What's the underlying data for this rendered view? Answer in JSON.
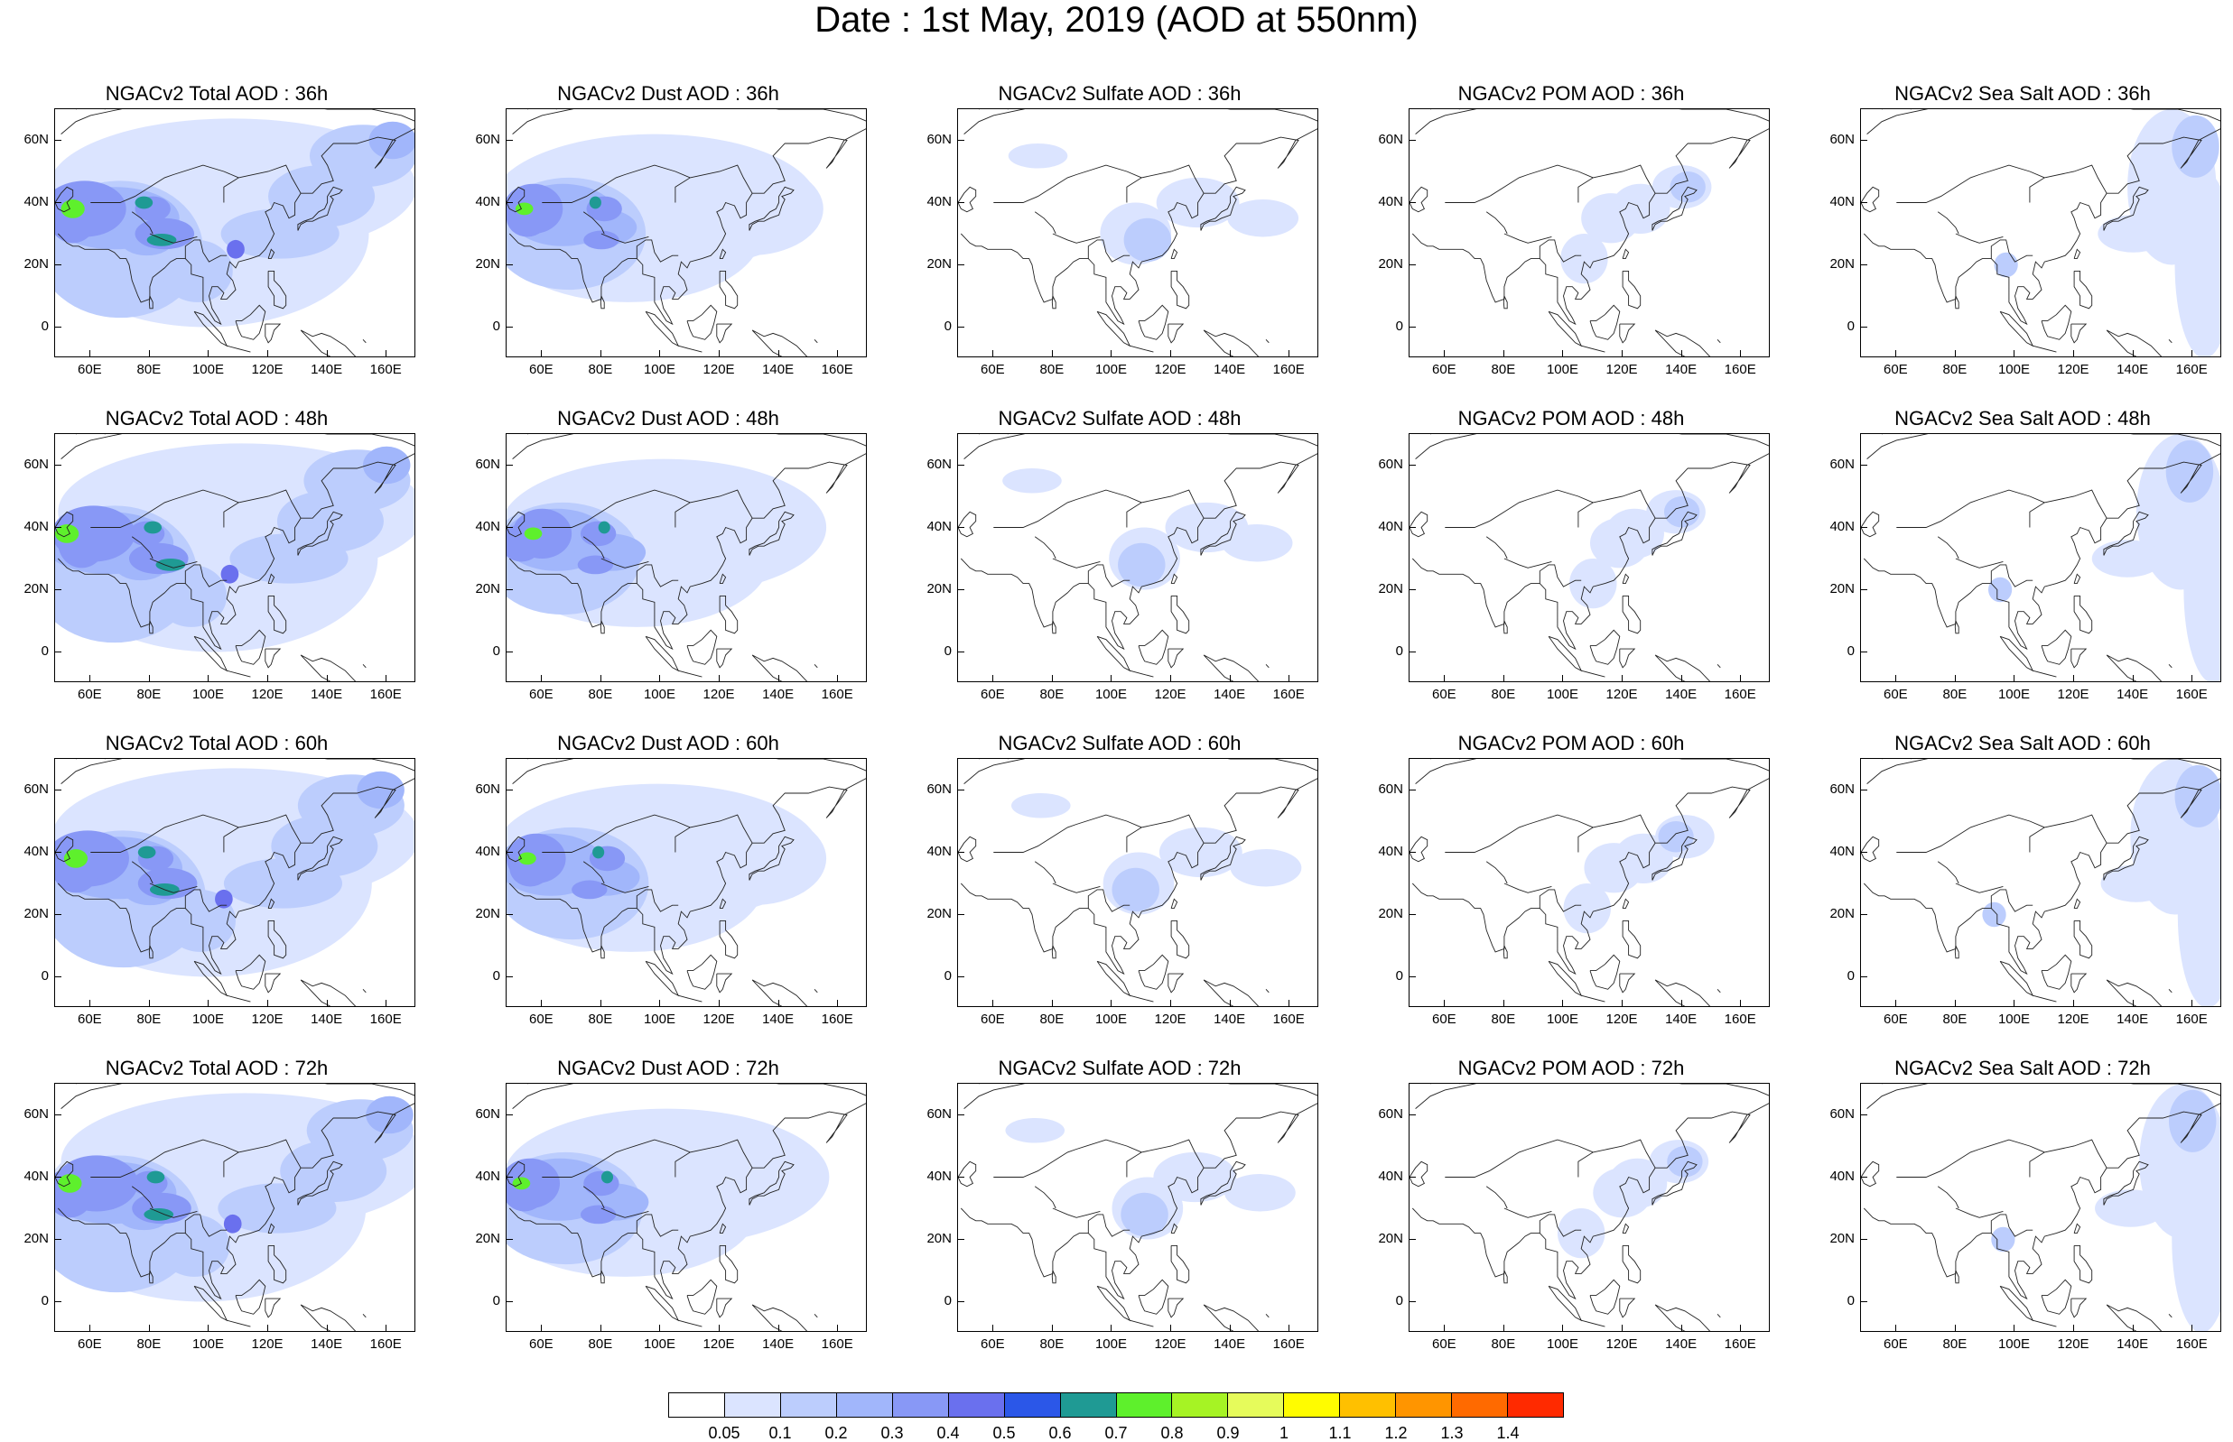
{
  "title": "Date : 1st May, 2019 (AOD at 550nm)",
  "lat_ticks": [
    "60N",
    "40N",
    "20N",
    "0"
  ],
  "lon_ticks": [
    "60E",
    "80E",
    "100E",
    "120E",
    "140E",
    "160E"
  ],
  "panels": [
    {
      "title": "NGACv2 Total AOD : 36h",
      "species": "total",
      "lead": "36h"
    },
    {
      "title": "NGACv2 Dust AOD : 36h",
      "species": "dust",
      "lead": "36h"
    },
    {
      "title": "NGACv2 Sulfate AOD : 36h",
      "species": "sulfate",
      "lead": "36h"
    },
    {
      "title": "NGACv2 POM AOD : 36h",
      "species": "pom",
      "lead": "36h"
    },
    {
      "title": "NGACv2 Sea Salt AOD : 36h",
      "species": "seasalt",
      "lead": "36h"
    },
    {
      "title": "NGACv2 Total AOD : 48h",
      "species": "total",
      "lead": "48h"
    },
    {
      "title": "NGACv2 Dust AOD : 48h",
      "species": "dust",
      "lead": "48h"
    },
    {
      "title": "NGACv2 Sulfate AOD : 48h",
      "species": "sulfate",
      "lead": "48h"
    },
    {
      "title": "NGACv2 POM AOD : 48h",
      "species": "pom",
      "lead": "48h"
    },
    {
      "title": "NGACv2 Sea Salt AOD : 48h",
      "species": "seasalt",
      "lead": "48h"
    },
    {
      "title": "NGACv2 Total AOD : 60h",
      "species": "total",
      "lead": "60h"
    },
    {
      "title": "NGACv2 Dust AOD : 60h",
      "species": "dust",
      "lead": "60h"
    },
    {
      "title": "NGACv2 Sulfate AOD : 60h",
      "species": "sulfate",
      "lead": "60h"
    },
    {
      "title": "NGACv2 POM AOD : 60h",
      "species": "pom",
      "lead": "60h"
    },
    {
      "title": "NGACv2 Sea Salt AOD : 60h",
      "species": "seasalt",
      "lead": "60h"
    },
    {
      "title": "NGACv2 Total AOD : 72h",
      "species": "total",
      "lead": "72h"
    },
    {
      "title": "NGACv2 Dust AOD : 72h",
      "species": "dust",
      "lead": "72h"
    },
    {
      "title": "NGACv2 Sulfate AOD : 72h",
      "species": "sulfate",
      "lead": "72h"
    },
    {
      "title": "NGACv2 POM AOD : 72h",
      "species": "pom",
      "lead": "72h"
    },
    {
      "title": "NGACv2 Sea Salt  AOD : 72h",
      "species": "seasalt",
      "lead": "72h"
    }
  ],
  "colorbar": {
    "labels": [
      "0.05",
      "0.1",
      "0.2",
      "0.3",
      "0.4",
      "0.5",
      "0.6",
      "0.7",
      "0.8",
      "0.9",
      "1",
      "1.1",
      "1.2",
      "1.3",
      "1.4"
    ],
    "colors": [
      "#ffffff",
      "#dbe4ff",
      "#bccdfd",
      "#a1b6fb",
      "#8898f6",
      "#6a70ee",
      "#2b57e8",
      "#1f9a94",
      "#5ef02c",
      "#a6f324",
      "#e6fb5b",
      "#fffc00",
      "#ffc000",
      "#ff9500",
      "#ff6a00",
      "#ff2a00"
    ]
  }
}
